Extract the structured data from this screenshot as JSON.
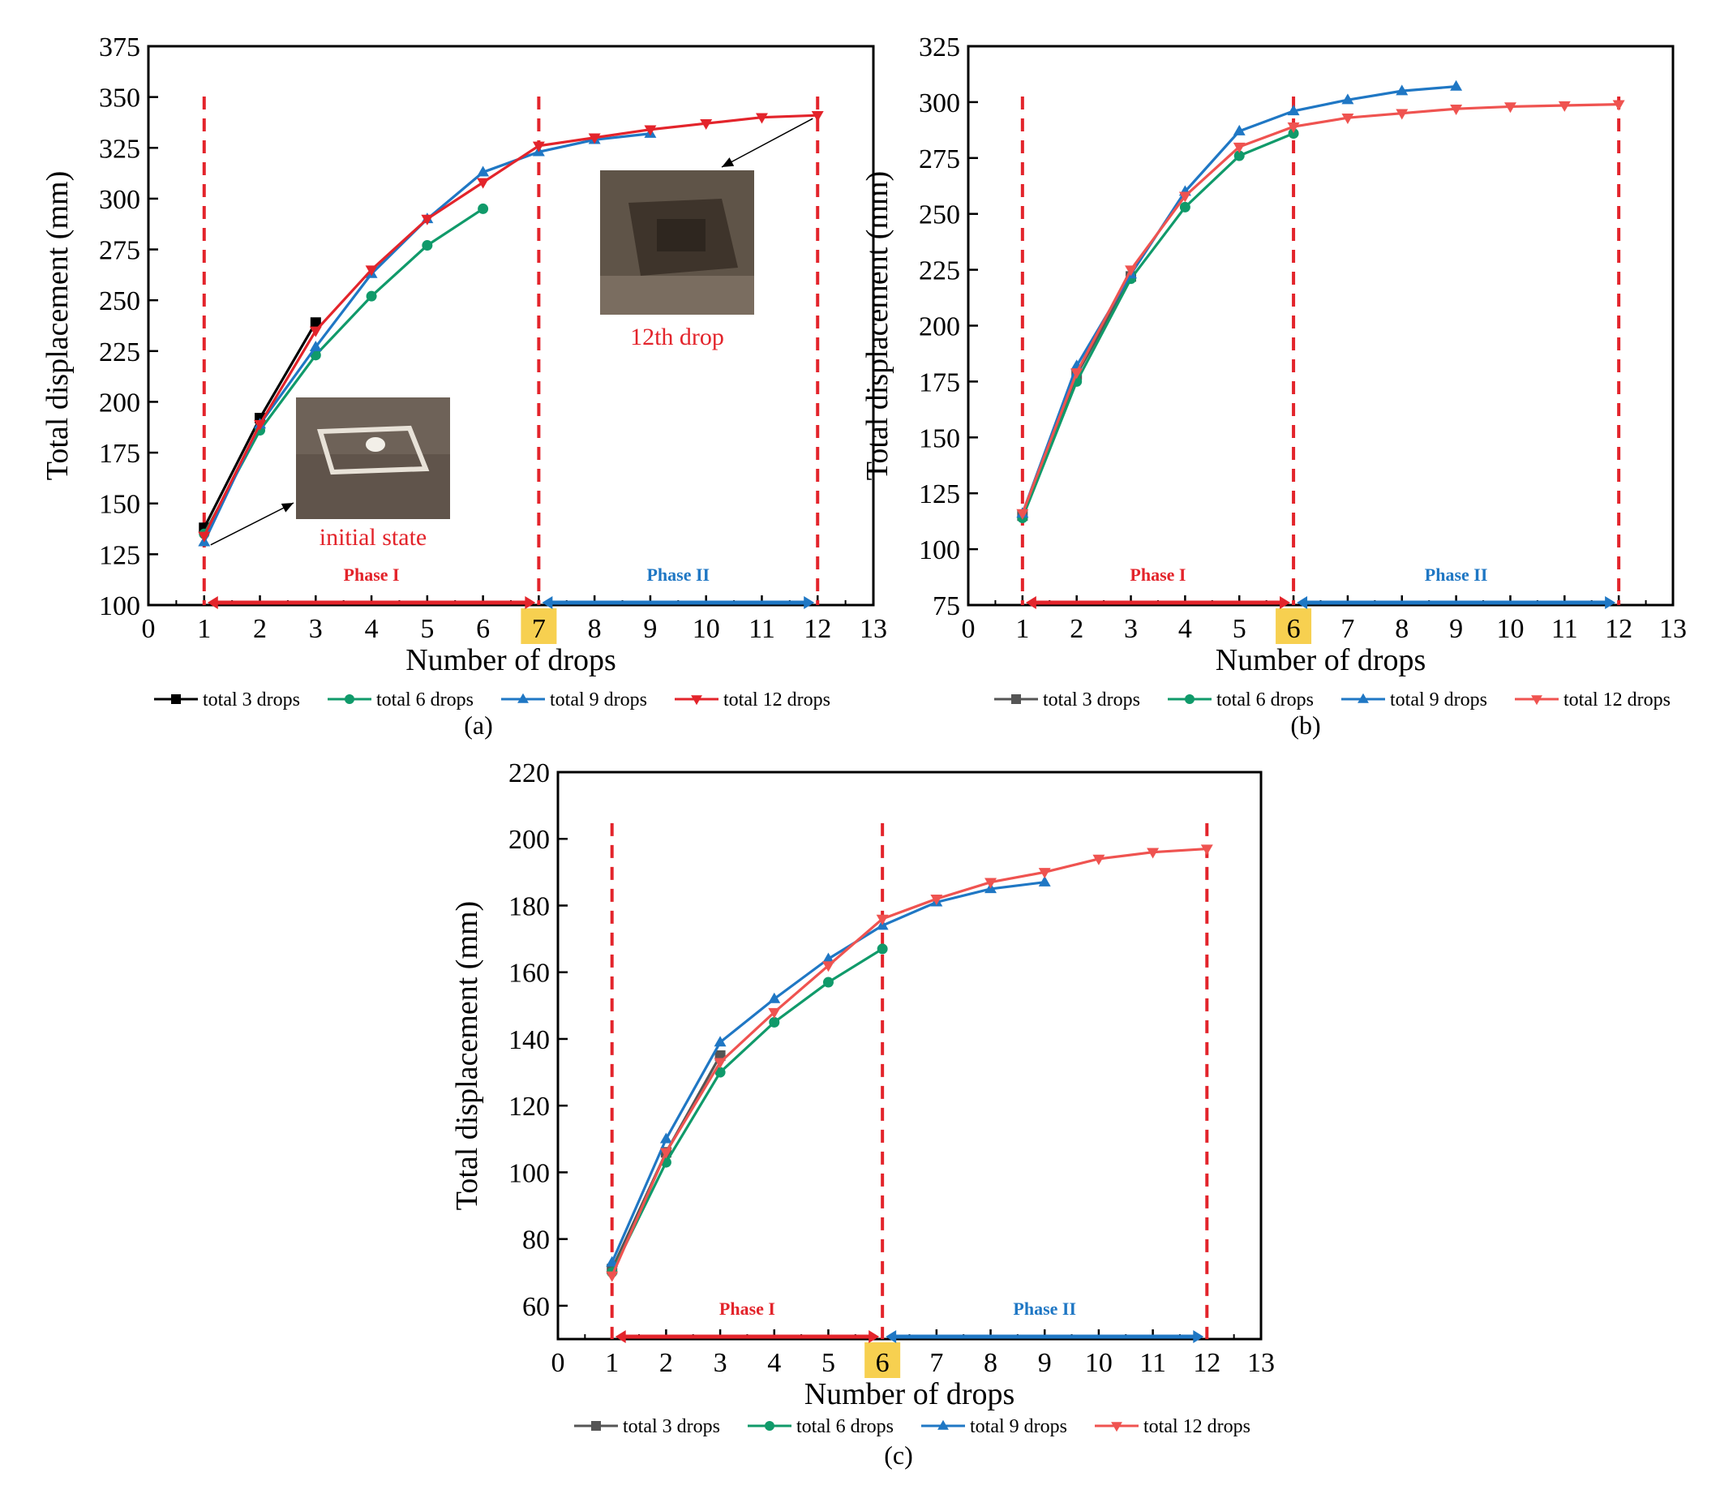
{
  "colors": {
    "series_a": [
      "#000000",
      "#109a6a",
      "#1f77c4",
      "#e3242b"
    ],
    "series_bc": [
      "#555555",
      "#109a6a",
      "#1f77c4",
      "#ef5350"
    ],
    "phase_divider": "#e3242b",
    "phase1": "#e3242b",
    "phase2": "#1f77c4",
    "highlight": "#f7d050"
  },
  "chart_data": [
    {
      "id": "a",
      "type": "line",
      "caption": "(a)",
      "xlabel": "Number of drops",
      "ylabel": "Total displacement (mm)",
      "xlim": [
        0,
        13
      ],
      "ylim": [
        100,
        375
      ],
      "xticks": [
        "0",
        "1",
        "2",
        "3",
        "4",
        "5",
        "6",
        "7",
        "8",
        "9",
        "10",
        "11",
        "12",
        "13"
      ],
      "yticks": [
        "100",
        "125",
        "150",
        "175",
        "200",
        "225",
        "250",
        "275",
        "300",
        "325",
        "350",
        "375"
      ],
      "highlight_tick": 7,
      "dividers": [
        1,
        7,
        12
      ],
      "phases": [
        {
          "label": "Phase I",
          "from": 1,
          "to": 7
        },
        {
          "label": "Phase II",
          "from": 7,
          "to": 12
        }
      ],
      "annotations": [
        {
          "text": "initial state",
          "target_x": 1,
          "target_y": 132
        },
        {
          "text": "12th drop",
          "target_x": 12,
          "target_y": 341
        }
      ],
      "series": [
        {
          "name": "total 3 drops",
          "marker": "square",
          "x": [
            1,
            2,
            3
          ],
          "y": [
            138,
            192,
            239
          ]
        },
        {
          "name": "total 6 drops",
          "marker": "circle",
          "x": [
            1,
            2,
            3,
            4,
            5,
            6
          ],
          "y": [
            135,
            186,
            223,
            252,
            277,
            295
          ]
        },
        {
          "name": "total 9 drops",
          "marker": "triangle-up",
          "x": [
            1,
            2,
            3,
            4,
            5,
            6,
            7,
            8,
            9
          ],
          "y": [
            131,
            189,
            227,
            263,
            290,
            313,
            323,
            329,
            332
          ]
        },
        {
          "name": "total 12 drops",
          "marker": "triangle-down",
          "x": [
            1,
            2,
            3,
            4,
            5,
            6,
            7,
            8,
            9,
            10,
            11,
            12
          ],
          "y": [
            134,
            189,
            235,
            265,
            290,
            308,
            326,
            330,
            334,
            337,
            340,
            341
          ]
        }
      ]
    },
    {
      "id": "b",
      "type": "line",
      "caption": "(b)",
      "xlabel": "Number of drops",
      "ylabel": "Total displacement (mm)",
      "xlim": [
        0,
        13
      ],
      "ylim": [
        75,
        325
      ],
      "xticks": [
        "0",
        "1",
        "2",
        "3",
        "4",
        "5",
        "6",
        "7",
        "8",
        "9",
        "10",
        "11",
        "12",
        "13"
      ],
      "yticks": [
        "75",
        "100",
        "125",
        "150",
        "175",
        "200",
        "225",
        "250",
        "275",
        "300",
        "325"
      ],
      "highlight_tick": 6,
      "dividers": [
        1,
        6,
        12
      ],
      "phases": [
        {
          "label": "Phase I",
          "from": 1,
          "to": 6
        },
        {
          "label": "Phase II",
          "from": 6,
          "to": 12
        }
      ],
      "annotations": [],
      "series": [
        {
          "name": "total 3 drops",
          "marker": "square",
          "x": [
            1,
            2,
            3
          ],
          "y": [
            115,
            178,
            222
          ]
        },
        {
          "name": "total 6 drops",
          "marker": "circle",
          "x": [
            1,
            2,
            3,
            4,
            5,
            6
          ],
          "y": [
            114,
            175,
            221,
            253,
            276,
            286
          ]
        },
        {
          "name": "total 9 drops",
          "marker": "triangle-up",
          "x": [
            1,
            2,
            3,
            4,
            5,
            6,
            7,
            8,
            9
          ],
          "y": [
            116,
            182,
            223,
            260,
            287,
            296,
            301,
            305,
            307
          ]
        },
        {
          "name": "total 12 drops",
          "marker": "triangle-down",
          "x": [
            1,
            2,
            3,
            4,
            5,
            6,
            7,
            8,
            9,
            10,
            11,
            12
          ],
          "y": [
            116,
            179,
            225,
            258,
            280,
            289,
            293,
            295,
            297,
            298,
            298.5,
            299
          ]
        }
      ]
    },
    {
      "id": "c",
      "type": "line",
      "caption": "(c)",
      "xlabel": "Number of drops",
      "ylabel": "Total displacement (mm)",
      "xlim": [
        0,
        13
      ],
      "ylim": [
        50,
        220
      ],
      "xticks": [
        "0",
        "1",
        "2",
        "3",
        "4",
        "5",
        "6",
        "7",
        "8",
        "9",
        "10",
        "11",
        "12",
        "13"
      ],
      "yticks": [
        "60",
        "80",
        "100",
        "120",
        "140",
        "160",
        "180",
        "200",
        "220"
      ],
      "ytick_values": [
        60,
        80,
        100,
        120,
        140,
        160,
        180,
        200,
        220
      ],
      "highlight_tick": 6,
      "dividers": [
        1,
        6,
        12
      ],
      "phases": [
        {
          "label": "Phase I",
          "from": 1,
          "to": 6
        },
        {
          "label": "Phase II",
          "from": 6,
          "to": 12
        }
      ],
      "annotations": [],
      "series": [
        {
          "name": "total 3 drops",
          "marker": "square",
          "x": [
            1,
            2,
            3
          ],
          "y": [
            71,
            106,
            135
          ]
        },
        {
          "name": "total 6 drops",
          "marker": "circle",
          "x": [
            1,
            2,
            3,
            4,
            5,
            6
          ],
          "y": [
            70,
            103,
            130,
            145,
            157,
            167
          ]
        },
        {
          "name": "total 9 drops",
          "marker": "triangle-up",
          "x": [
            1,
            2,
            3,
            4,
            5,
            6,
            7,
            8,
            9
          ],
          "y": [
            73,
            110,
            139,
            152,
            164,
            174,
            181,
            185,
            187
          ]
        },
        {
          "name": "total 12 drops",
          "marker": "triangle-down",
          "x": [
            1,
            2,
            3,
            4,
            5,
            6,
            7,
            8,
            9,
            10,
            11,
            12
          ],
          "y": [
            69,
            106,
            133,
            148,
            162,
            176,
            182,
            187,
            190,
            194,
            196,
            197
          ]
        }
      ]
    }
  ]
}
